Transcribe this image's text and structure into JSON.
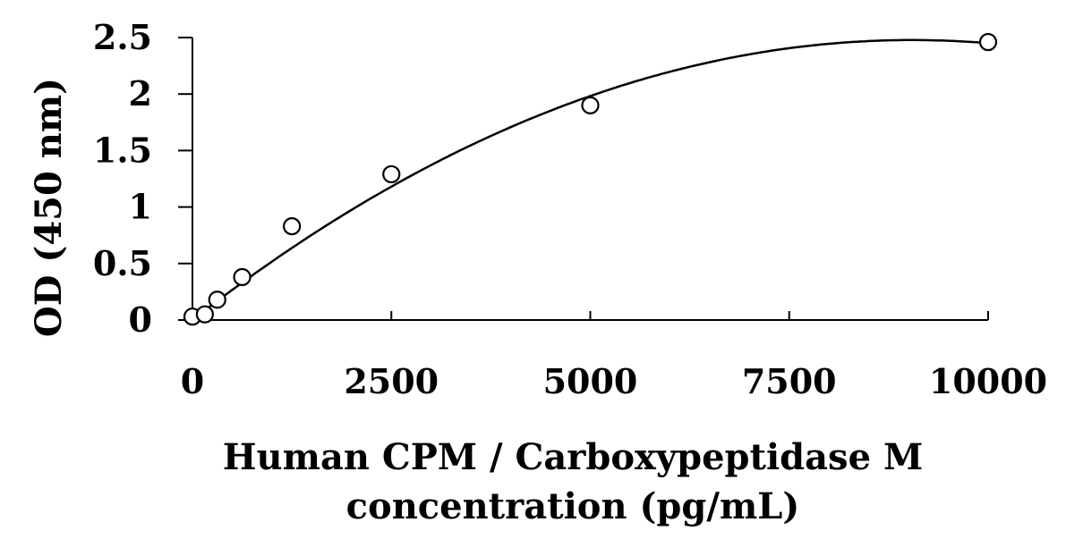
{
  "chart_data": {
    "type": "scatter",
    "xlabel_lines": [
      "Human CPM / Carboxypeptidase M",
      "concentration (pg/mL)"
    ],
    "ylabel": "OD (450 nm)",
    "xlim": [
      0,
      10000
    ],
    "ylim": [
      0,
      2.5
    ],
    "x_ticks": [
      0,
      2500,
      5000,
      7500,
      10000
    ],
    "x_tick_labels": [
      "0",
      "2500",
      "5000",
      "7500",
      "10000"
    ],
    "y_ticks": [
      0,
      0.5,
      1,
      1.5,
      2,
      2.5
    ],
    "y_tick_labels": [
      "0",
      "0.5",
      "1",
      "1.5",
      "2",
      "2.5"
    ],
    "grid": false,
    "series": [
      {
        "marker": "open-circle",
        "x": [
          0,
          156,
          312,
          625,
          1250,
          2500,
          5000,
          10000
        ],
        "y": [
          0.03,
          0.05,
          0.18,
          0.38,
          0.83,
          1.29,
          1.9,
          2.46
        ]
      }
    ],
    "fit_curve": {
      "type": "polynomial-2",
      "coefficients": [
        0.0,
        0.000548,
        -3.03e-08
      ]
    },
    "colors": {
      "line": "#000000",
      "marker_fill": "#ffffff",
      "background": "#ffffff"
    }
  }
}
